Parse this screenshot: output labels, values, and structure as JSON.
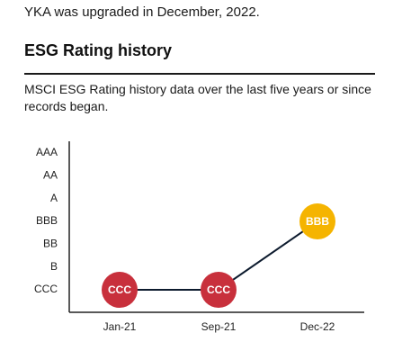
{
  "intro": "YKA was upgraded in December, 2022.",
  "chart_data": {
    "type": "line",
    "title": "ESG Rating history",
    "subtitle": "MSCI ESG Rating history data over the last five years or since records began.",
    "categories": [
      "Jan-21",
      "Sep-21",
      "Dec-22"
    ],
    "y_categories": [
      "AAA",
      "AA",
      "A",
      "BBB",
      "BB",
      "B",
      "CCC"
    ],
    "values": [
      "CCC",
      "CCC",
      "BBB"
    ],
    "point_colors": [
      "#c8303c",
      "#c8303c",
      "#f5b400"
    ],
    "line_color": "#0d1b2e"
  }
}
